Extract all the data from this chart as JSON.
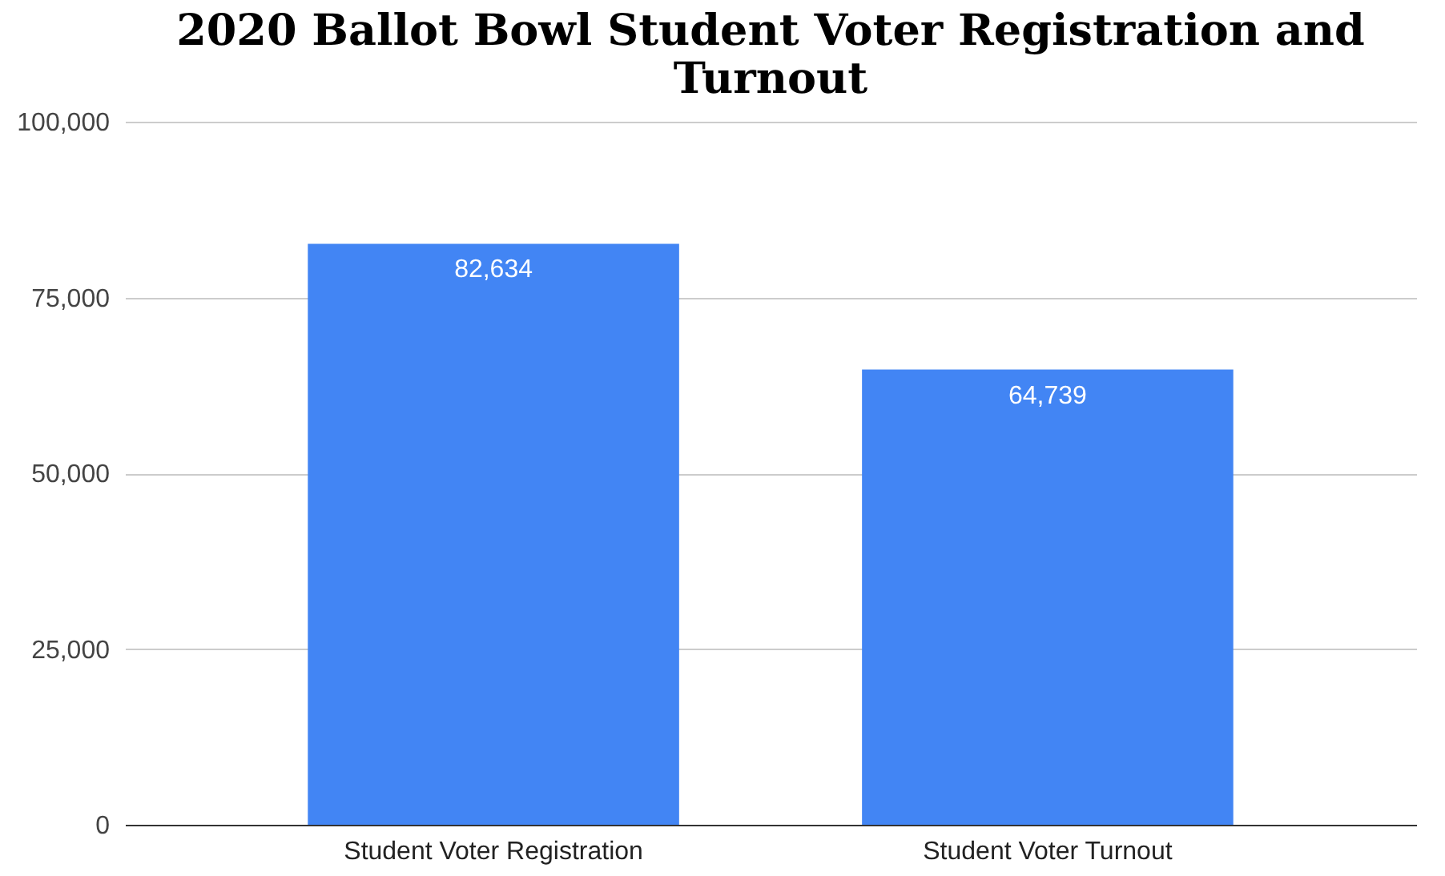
{
  "chart_data": {
    "type": "bar",
    "title": "2020 Ballot Bowl Student Voter Registration and Turnout",
    "categories": [
      "Student Voter Registration",
      "Student Voter Turnout"
    ],
    "values": [
      82634,
      64739
    ],
    "color": "#4285f4",
    "ylim": [
      0,
      100000
    ],
    "yticks": [
      {
        "value": 0,
        "label": "0"
      },
      {
        "value": 25000,
        "label": "25,000"
      },
      {
        "value": 50000,
        "label": "50,000"
      },
      {
        "value": 75000,
        "label": "75,000"
      },
      {
        "value": 100000,
        "label": "100,000"
      }
    ],
    "grid": true,
    "value_labels": [
      "82,634",
      "64,739"
    ]
  }
}
